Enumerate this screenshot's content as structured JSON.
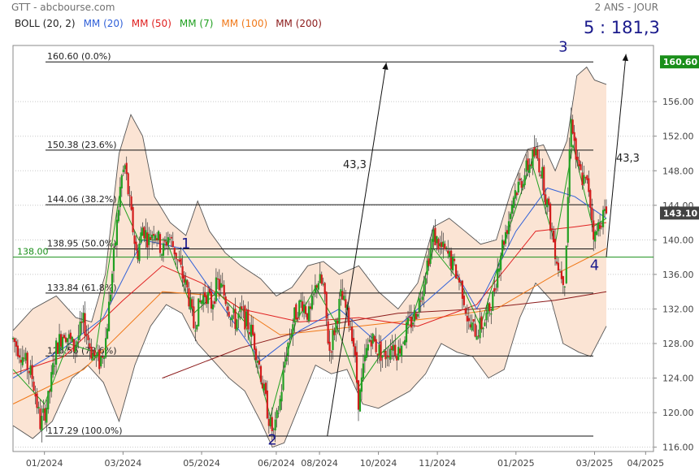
{
  "header": {
    "left": "GTT - abcbourse.com",
    "right": "2 ANS - JOUR"
  },
  "legend": [
    {
      "label": "BOLL (20, 2)",
      "color": "#222222"
    },
    {
      "label": "MM (20)",
      "color": "#3060d8"
    },
    {
      "label": "MM (50)",
      "color": "#e02020"
    },
    {
      "label": "MM (7)",
      "color": "#20a020"
    },
    {
      "label": "MM (100)",
      "color": "#f07818"
    },
    {
      "label": "MM (200)",
      "color": "#8b1a1a"
    }
  ],
  "chart_data": {
    "type": "candlestick",
    "instrument": "GTT",
    "period": "2 ANS - JOUR",
    "y_ticks": [
      116.0,
      120.0,
      124.0,
      128.0,
      132.0,
      136.0,
      140.0,
      144.0,
      148.0,
      152.0,
      156.0
    ],
    "y_tick_labels": [
      "116.00",
      "120.00",
      "124.00",
      "128.00",
      "132.00",
      "136.00",
      "140.00",
      "144.00",
      "148.00",
      "152.00",
      "156.00"
    ],
    "ylim": [
      115.5,
      162.5
    ],
    "x_ticks": [
      "01/2024",
      "03/2024",
      "05/2024",
      "06/2024",
      "08/2024",
      "10/2024",
      "11/2024",
      "01/2025",
      "03/2025",
      "04/2025"
    ],
    "x_ticks_month_index": [
      0,
      2,
      4,
      5.9,
      7,
      8.5,
      10,
      12,
      14,
      15.3
    ],
    "x_range_month_index": [
      -0.8,
      15.5
    ],
    "last_price": {
      "value": 143.1,
      "label": "143.10",
      "color": "#424242"
    },
    "high_marker": {
      "value": 160.6,
      "label": "160.60",
      "color": "#1a8f1a"
    },
    "support_line": {
      "value": 138.0,
      "label": "138.00",
      "color": "#1a8f1a"
    },
    "fibonacci": [
      {
        "value": 160.6,
        "label": "160.60  (0.0%)"
      },
      {
        "value": 150.38,
        "label": "150.38  (23.6%)"
      },
      {
        "value": 144.06,
        "label": "144.06  (38.2%)"
      },
      {
        "value": 138.95,
        "label": "138.95  (50.0%)"
      },
      {
        "value": 133.84,
        "label": "133.84  (61.8%)"
      },
      {
        "value": 126.56,
        "label": "126.56  (78.6%)"
      },
      {
        "value": 117.29,
        "label": "117.29  (100.0%)"
      }
    ],
    "wave_labels": [
      {
        "label": "1",
        "month_index": 3.6,
        "price": 139.0
      },
      {
        "label": "2",
        "month_index": 5.8,
        "price": 116.3
      },
      {
        "label": "3",
        "month_index": 13.2,
        "price": 161.8
      },
      {
        "label": "4",
        "month_index": 14.0,
        "price": 136.5
      }
    ],
    "target_text": "5 : 181,3",
    "arrow_label_1": "43,3",
    "arrow_label_2": "43,3",
    "arrows": [
      {
        "from": [
          7.2,
          117.3
        ],
        "to": [
          8.7,
          160.5
        ]
      },
      {
        "from": [
          14.3,
          138.0
        ],
        "to": [
          14.8,
          161.5
        ]
      }
    ],
    "price_path": [
      [
        -0.8,
        128.5
      ],
      [
        -0.55,
        126.5
      ],
      [
        -0.3,
        124.0
      ],
      [
        -0.1,
        118.5
      ],
      [
        0.1,
        121.5
      ],
      [
        0.3,
        127.5
      ],
      [
        0.5,
        129.5
      ],
      [
        0.75,
        127.5
      ],
      [
        1.0,
        130.5
      ],
      [
        1.2,
        127.0
      ],
      [
        1.4,
        125.8
      ],
      [
        1.55,
        128.0
      ],
      [
        1.7,
        135.0
      ],
      [
        1.85,
        142.0
      ],
      [
        1.95,
        147.0
      ],
      [
        2.05,
        148.5
      ],
      [
        2.2,
        143.0
      ],
      [
        2.35,
        138.0
      ],
      [
        2.5,
        141.5
      ],
      [
        2.65,
        140.0
      ],
      [
        2.8,
        141.5
      ],
      [
        3.0,
        138.5
      ],
      [
        3.15,
        140.5
      ],
      [
        3.3,
        139.0
      ],
      [
        3.5,
        136.0
      ],
      [
        3.65,
        134.0
      ],
      [
        3.8,
        130.0
      ],
      [
        3.95,
        132.5
      ],
      [
        4.1,
        134.0
      ],
      [
        4.25,
        132.5
      ],
      [
        4.4,
        135.0
      ],
      [
        4.55,
        134.0
      ],
      [
        4.7,
        132.0
      ],
      [
        4.85,
        130.5
      ],
      [
        5.0,
        131.5
      ],
      [
        5.15,
        130.5
      ],
      [
        5.3,
        129.0
      ],
      [
        5.45,
        126.0
      ],
      [
        5.6,
        122.0
      ],
      [
        5.75,
        118.5
      ],
      [
        5.85,
        117.5
      ],
      [
        6.0,
        121.5
      ],
      [
        6.15,
        127.0
      ],
      [
        6.35,
        131.0
      ],
      [
        6.55,
        133.0
      ],
      [
        6.75,
        131.0
      ],
      [
        6.95,
        135.5
      ],
      [
        7.1,
        134.5
      ],
      [
        7.25,
        127.0
      ],
      [
        7.4,
        130.0
      ],
      [
        7.55,
        133.5
      ],
      [
        7.7,
        131.5
      ],
      [
        7.85,
        129.0
      ],
      [
        8.0,
        121.0
      ],
      [
        8.15,
        126.0
      ],
      [
        8.3,
        129.0
      ],
      [
        8.45,
        127.5
      ],
      [
        8.65,
        126.5
      ],
      [
        8.85,
        128.0
      ],
      [
        9.0,
        127.0
      ],
      [
        9.2,
        129.5
      ],
      [
        9.4,
        131.0
      ],
      [
        9.55,
        133.0
      ],
      [
        9.7,
        136.5
      ],
      [
        9.9,
        140.5
      ],
      [
        10.1,
        139.0
      ],
      [
        10.3,
        138.0
      ],
      [
        10.5,
        136.0
      ],
      [
        10.65,
        134.0
      ],
      [
        10.8,
        130.0
      ],
      [
        11.0,
        129.5
      ],
      [
        11.2,
        130.5
      ],
      [
        11.4,
        133.0
      ],
      [
        11.6,
        138.5
      ],
      [
        11.8,
        142.0
      ],
      [
        11.95,
        145.5
      ],
      [
        12.1,
        146.5
      ],
      [
        12.3,
        148.5
      ],
      [
        12.5,
        150.0
      ],
      [
        12.65,
        148.0
      ],
      [
        12.8,
        144.0
      ],
      [
        12.95,
        140.0
      ],
      [
        13.1,
        136.5
      ],
      [
        13.25,
        135.5
      ],
      [
        13.4,
        155.0
      ],
      [
        13.55,
        148.5
      ],
      [
        13.7,
        147.0
      ],
      [
        13.85,
        146.0
      ],
      [
        14.0,
        140.0
      ],
      [
        14.15,
        142.5
      ],
      [
        14.3,
        143.1
      ]
    ],
    "moving_averages": [
      {
        "name": "MM (200)",
        "color": "#8b1a1a",
        "points": [
          [
            3.0,
            124.0
          ],
          [
            5.0,
            127.5
          ],
          [
            7.0,
            130.0
          ],
          [
            9.0,
            131.5
          ],
          [
            11.0,
            132.0
          ],
          [
            13.0,
            133.0
          ],
          [
            14.3,
            134.0
          ]
        ]
      },
      {
        "name": "MM (100)",
        "color": "#f07818",
        "points": [
          [
            -0.8,
            121.0
          ],
          [
            1.0,
            125.0
          ],
          [
            3.0,
            134.0
          ],
          [
            4.5,
            133.5
          ],
          [
            6.0,
            129.0
          ],
          [
            8.0,
            130.0
          ],
          [
            10.0,
            131.0
          ],
          [
            11.5,
            132.0
          ],
          [
            13.0,
            136.0
          ],
          [
            14.3,
            139.0
          ]
        ]
      },
      {
        "name": "MM (50)",
        "color": "#e02020",
        "points": [
          [
            -0.8,
            124.5
          ],
          [
            0.5,
            126.5
          ],
          [
            2.0,
            133.0
          ],
          [
            3.0,
            137.0
          ],
          [
            4.0,
            135.0
          ],
          [
            5.0,
            132.0
          ],
          [
            6.5,
            130.5
          ],
          [
            8.0,
            131.0
          ],
          [
            9.5,
            130.0
          ],
          [
            11.0,
            132.5
          ],
          [
            12.5,
            141.0
          ],
          [
            13.5,
            141.5
          ],
          [
            14.3,
            142.0
          ]
        ]
      },
      {
        "name": "MM (20)",
        "color": "#3060d8",
        "points": [
          [
            -0.8,
            124.0
          ],
          [
            0.5,
            127.5
          ],
          [
            1.5,
            131.0
          ],
          [
            2.5,
            140.0
          ],
          [
            3.5,
            139.0
          ],
          [
            4.5,
            132.5
          ],
          [
            5.5,
            126.0
          ],
          [
            6.5,
            129.5
          ],
          [
            7.5,
            132.0
          ],
          [
            8.5,
            128.0
          ],
          [
            9.5,
            132.0
          ],
          [
            10.5,
            136.0
          ],
          [
            11.0,
            132.0
          ],
          [
            12.0,
            141.0
          ],
          [
            12.8,
            146.0
          ],
          [
            13.5,
            145.0
          ],
          [
            14.3,
            142.5
          ]
        ]
      },
      {
        "name": "MM (7)",
        "color": "#20a020",
        "points": [
          [
            -0.8,
            125.0
          ],
          [
            0.0,
            121.0
          ],
          [
            0.6,
            128.0
          ],
          [
            1.3,
            127.0
          ],
          [
            1.9,
            145.0
          ],
          [
            2.4,
            140.0
          ],
          [
            3.1,
            140.0
          ],
          [
            3.8,
            131.5
          ],
          [
            4.4,
            134.0
          ],
          [
            5.1,
            130.5
          ],
          [
            5.75,
            119.5
          ],
          [
            6.4,
            130.5
          ],
          [
            6.9,
            134.5
          ],
          [
            7.4,
            130.5
          ],
          [
            8.0,
            123.0
          ],
          [
            8.6,
            127.0
          ],
          [
            9.3,
            130.0
          ],
          [
            9.9,
            139.0
          ],
          [
            10.6,
            135.0
          ],
          [
            11.1,
            130.0
          ],
          [
            11.8,
            141.0
          ],
          [
            12.4,
            149.0
          ],
          [
            13.0,
            139.5
          ],
          [
            13.45,
            151.0
          ],
          [
            13.95,
            141.5
          ],
          [
            14.3,
            142.5
          ]
        ]
      }
    ],
    "bollinger": {
      "upper": [
        [
          -0.8,
          129.5
        ],
        [
          -0.3,
          132.0
        ],
        [
          0.3,
          133.5
        ],
        [
          0.8,
          131.0
        ],
        [
          1.2,
          130.5
        ],
        [
          1.55,
          136.0
        ],
        [
          1.9,
          150.0
        ],
        [
          2.2,
          154.5
        ],
        [
          2.5,
          152.0
        ],
        [
          2.8,
          145.0
        ],
        [
          3.2,
          142.0
        ],
        [
          3.6,
          140.5
        ],
        [
          3.9,
          144.5
        ],
        [
          4.2,
          141.0
        ],
        [
          4.6,
          138.5
        ],
        [
          5.0,
          137.0
        ],
        [
          5.5,
          135.5
        ],
        [
          5.9,
          133.5
        ],
        [
          6.3,
          134.5
        ],
        [
          6.7,
          137.0
        ],
        [
          7.1,
          137.5
        ],
        [
          7.5,
          136.0
        ],
        [
          8.0,
          137.0
        ],
        [
          8.5,
          134.0
        ],
        [
          9.0,
          132.0
        ],
        [
          9.5,
          135.0
        ],
        [
          9.9,
          141.5
        ],
        [
          10.3,
          142.5
        ],
        [
          10.7,
          141.0
        ],
        [
          11.1,
          139.5
        ],
        [
          11.5,
          140.0
        ],
        [
          11.9,
          146.0
        ],
        [
          12.3,
          150.5
        ],
        [
          12.7,
          151.0
        ],
        [
          13.0,
          148.0
        ],
        [
          13.3,
          151.5
        ],
        [
          13.55,
          159.0
        ],
        [
          13.8,
          160.0
        ],
        [
          14.0,
          158.5
        ],
        [
          14.3,
          158.0
        ]
      ],
      "lower": [
        [
          -0.8,
          118.5
        ],
        [
          -0.3,
          117.0
        ],
        [
          0.2,
          119.0
        ],
        [
          0.7,
          124.0
        ],
        [
          1.1,
          125.5
        ],
        [
          1.5,
          123.5
        ],
        [
          1.9,
          119.0
        ],
        [
          2.3,
          125.5
        ],
        [
          2.7,
          130.0
        ],
        [
          3.1,
          132.5
        ],
        [
          3.5,
          131.5
        ],
        [
          3.9,
          128.0
        ],
        [
          4.3,
          126.0
        ],
        [
          4.7,
          124.0
        ],
        [
          5.1,
          122.5
        ],
        [
          5.5,
          119.0
        ],
        [
          5.8,
          116.0
        ],
        [
          6.1,
          116.5
        ],
        [
          6.5,
          121.0
        ],
        [
          6.9,
          125.5
        ],
        [
          7.3,
          124.5
        ],
        [
          7.7,
          125.0
        ],
        [
          8.1,
          121.0
        ],
        [
          8.5,
          120.5
        ],
        [
          8.9,
          121.5
        ],
        [
          9.3,
          122.5
        ],
        [
          9.7,
          124.5
        ],
        [
          10.1,
          128.0
        ],
        [
          10.5,
          127.0
        ],
        [
          10.9,
          126.5
        ],
        [
          11.3,
          124.0
        ],
        [
          11.7,
          125.0
        ],
        [
          12.1,
          131.0
        ],
        [
          12.5,
          135.0
        ],
        [
          12.9,
          133.0
        ],
        [
          13.2,
          128.0
        ],
        [
          13.6,
          127.0
        ],
        [
          13.9,
          126.5
        ],
        [
          14.3,
          130.0
        ]
      ]
    },
    "grid": "horizontal dotted"
  }
}
